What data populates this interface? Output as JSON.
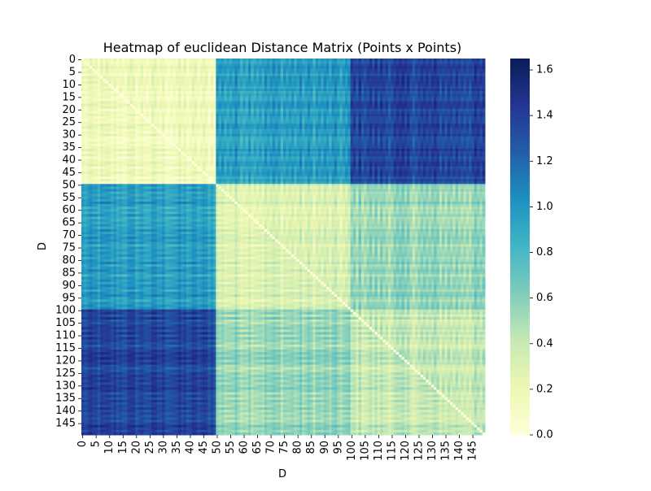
{
  "chart_data": {
    "type": "heatmap",
    "title": "Heatmap of euclidean Distance Matrix (Points x Points)",
    "xlabel": "D",
    "ylabel": "D",
    "n_points": 150,
    "x_ticks": [
      "0",
      "5",
      "10",
      "15",
      "20",
      "25",
      "30",
      "35",
      "40",
      "45",
      "50",
      "55",
      "60",
      "65",
      "70",
      "75",
      "80",
      "85",
      "90",
      "95",
      "100",
      "105",
      "110",
      "115",
      "120",
      "125",
      "130",
      "135",
      "140",
      "145"
    ],
    "y_ticks": [
      "0",
      "5",
      "10",
      "15",
      "20",
      "25",
      "30",
      "35",
      "40",
      "45",
      "50",
      "55",
      "60",
      "65",
      "70",
      "75",
      "80",
      "85",
      "90",
      "95",
      "100",
      "105",
      "110",
      "115",
      "120",
      "125",
      "130",
      "135",
      "140",
      "145"
    ],
    "groups": [
      {
        "start": 0,
        "end": 49
      },
      {
        "start": 50,
        "end": 99
      },
      {
        "start": 100,
        "end": 149
      }
    ],
    "block_means": [
      [
        0.15,
        0.95,
        1.35
      ],
      [
        0.95,
        0.3,
        0.55
      ],
      [
        1.35,
        0.55,
        0.4
      ]
    ],
    "colorbar": {
      "min": 0.0,
      "max": 1.65,
      "ticks": [
        "0.0",
        "0.2",
        "0.4",
        "0.6",
        "0.8",
        "1.0",
        "1.2",
        "1.4",
        "1.6"
      ],
      "colormap": "YlGnBu"
    },
    "colormap_stops": [
      "#ffffd9",
      "#edf8b1",
      "#c7e9b4",
      "#7fcdbb",
      "#41b6c4",
      "#1d91c0",
      "#225ea8",
      "#253494",
      "#081d58"
    ]
  }
}
